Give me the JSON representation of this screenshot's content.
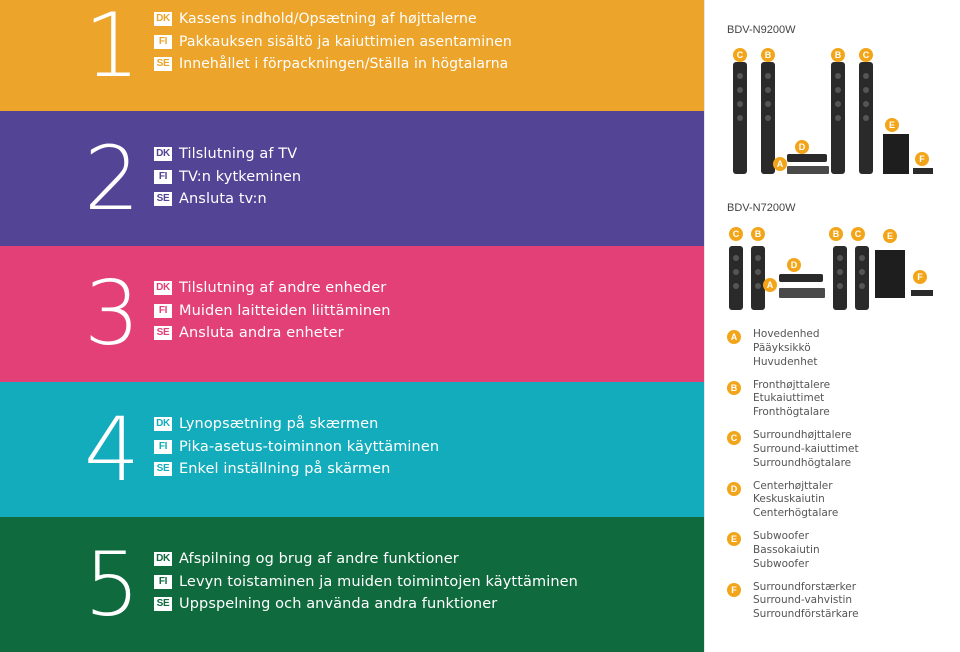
{
  "colors": {
    "section1": "#eca42a",
    "section2": "#534495",
    "section3": "#e34077",
    "section4": "#13acbc",
    "section5": "#0f6a3e",
    "badge": "#f3a51a"
  },
  "lang_codes": [
    "DK",
    "FI",
    "SE"
  ],
  "sections": [
    {
      "number": "1",
      "lines": [
        {
          "code": "DK",
          "text": "Kassens indhold/Opsætning af højttalerne"
        },
        {
          "code": "FI",
          "text": "Pakkauksen sisältö ja kaiuttimien asentaminen"
        },
        {
          "code": "SE",
          "text": "Innehållet i förpackningen/Ställa in högtalarna"
        }
      ]
    },
    {
      "number": "2",
      "lines": [
        {
          "code": "DK",
          "text": "Tilslutning af TV"
        },
        {
          "code": "FI",
          "text": "TV:n kytkeminen"
        },
        {
          "code": "SE",
          "text": "Ansluta tv:n"
        }
      ]
    },
    {
      "number": "3",
      "lines": [
        {
          "code": "DK",
          "text": "Tilslutning af andre enheder"
        },
        {
          "code": "FI",
          "text": "Muiden laitteiden liittäminen"
        },
        {
          "code": "SE",
          "text": "Ansluta andra enheter"
        }
      ]
    },
    {
      "number": "4",
      "lines": [
        {
          "code": "DK",
          "text": "Lynopsætning på skærmen"
        },
        {
          "code": "FI",
          "text": "Pika-asetus-toiminnon käyttäminen"
        },
        {
          "code": "SE",
          "text": "Enkel inställning på skärmen"
        }
      ]
    },
    {
      "number": "5",
      "lines": [
        {
          "code": "DK",
          "text": "Afspilning og brug af andre funktioner"
        },
        {
          "code": "FI",
          "text": "Levyn toistaminen ja muiden toimintojen käyttäminen"
        },
        {
          "code": "SE",
          "text": "Uppspelning och använda andra funktioner"
        }
      ]
    }
  ],
  "models": [
    {
      "name": "BDV-N9200W",
      "labels": {
        "front_left": "C",
        "front_left_b": "B",
        "front_right_b": "B",
        "front_right": "C",
        "main": "A",
        "center": "D",
        "sub": "E",
        "amp": "F"
      }
    },
    {
      "name": "BDV-N7200W",
      "labels": {
        "front_left": "C",
        "front_left_b": "B",
        "front_right_b": "B",
        "front_right": "C",
        "main": "A",
        "center": "D",
        "sub": "E",
        "amp": "F"
      }
    }
  ],
  "legend": [
    {
      "letter": "A",
      "names": [
        "Hovedenhed",
        "Pääyksikkö",
        "Huvudenhet"
      ]
    },
    {
      "letter": "B",
      "names": [
        "Fronthøjttalere",
        "Etukaiuttimet",
        "Fronthögtalare"
      ]
    },
    {
      "letter": "C",
      "names": [
        "Surroundhøjttalere",
        "Surround-kaiuttimet",
        "Surroundhögtalare"
      ]
    },
    {
      "letter": "D",
      "names": [
        "Centerhøjttaler",
        "Keskuskaiutin",
        "Centerhögtalare"
      ]
    },
    {
      "letter": "E",
      "names": [
        "Subwoofer",
        "Bassokaiutin",
        "Subwoofer"
      ]
    },
    {
      "letter": "F",
      "names": [
        "Surroundforstærker",
        "Surround-vahvistin",
        "Surroundförstärkare"
      ]
    }
  ]
}
